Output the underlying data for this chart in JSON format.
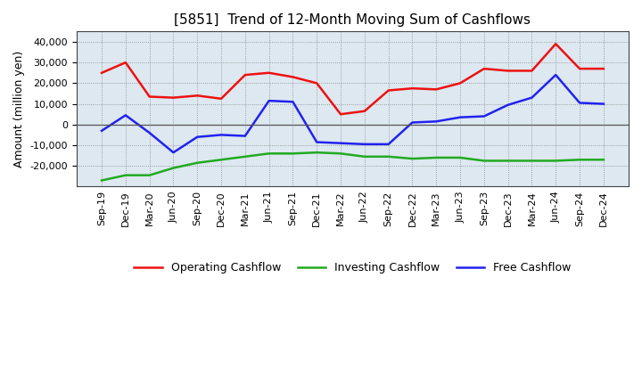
{
  "title": "[5851]  Trend of 12-Month Moving Sum of Cashflows",
  "ylabel": "Amount (million yen)",
  "background_color": "#ffffff",
  "plot_bg_color": "#dde8f0",
  "grid_color": "#888888",
  "xlabels": [
    "Sep-19",
    "Dec-19",
    "Mar-20",
    "Jun-20",
    "Sep-20",
    "Dec-20",
    "Mar-21",
    "Jun-21",
    "Sep-21",
    "Dec-21",
    "Mar-22",
    "Jun-22",
    "Sep-22",
    "Dec-22",
    "Mar-23",
    "Jun-23",
    "Sep-23",
    "Dec-23",
    "Mar-24",
    "Jun-24",
    "Sep-24",
    "Dec-24"
  ],
  "operating": [
    25000,
    30000,
    13500,
    13000,
    14000,
    12500,
    24000,
    25000,
    23000,
    20000,
    5000,
    6500,
    16500,
    17500,
    17000,
    20000,
    27000,
    26000,
    26000,
    39000,
    27000,
    27000
  ],
  "investing": [
    -27000,
    -24500,
    -24500,
    -21000,
    -18500,
    -17000,
    -15500,
    -14000,
    -14000,
    -13500,
    -14000,
    -15500,
    -15500,
    -16500,
    -16000,
    -16000,
    -17500,
    -17500,
    -17500,
    -17500,
    -17000,
    -17000
  ],
  "free": [
    -3000,
    4500,
    -4000,
    -13500,
    -6000,
    -5000,
    -5500,
    11500,
    11000,
    -8500,
    -9000,
    -9500,
    -9500,
    1000,
    1500,
    3500,
    4000,
    9500,
    13000,
    24000,
    10500,
    10000
  ],
  "ylim": [
    -30000,
    45000
  ],
  "yticks": [
    -20000,
    -10000,
    0,
    10000,
    20000,
    30000,
    40000
  ],
  "operating_color": "#ee1111",
  "investing_color": "#22aa22",
  "free_color": "#2222ee",
  "zero_line_color": "#555555",
  "linewidth": 1.8,
  "title_fontsize": 11,
  "ylabel_fontsize": 9,
  "tick_fontsize": 8
}
